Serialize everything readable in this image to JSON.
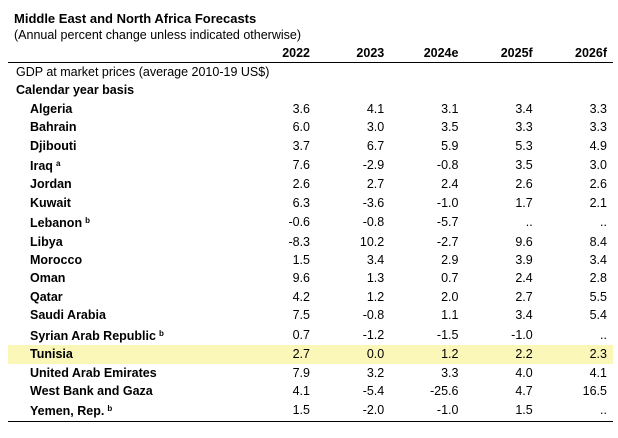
{
  "title": "Middle East and North Africa Forecasts",
  "subtitle": "(Annual percent change unless indicated otherwise)",
  "columns": [
    "2022",
    "2023",
    "2024e",
    "2025f",
    "2026f"
  ],
  "section_label": "GDP at market prices (average 2010-19 US$)",
  "subsection_label": "Calendar year basis",
  "rows": [
    {
      "name": "Algeria",
      "note": "",
      "values": [
        "3.6",
        "4.1",
        "3.1",
        "3.4",
        "3.3"
      ]
    },
    {
      "name": "Bahrain",
      "note": "",
      "values": [
        "6.0",
        "3.0",
        "3.5",
        "3.3",
        "3.3"
      ]
    },
    {
      "name": "Djibouti",
      "note": "",
      "values": [
        "3.7",
        "6.7",
        "5.9",
        "5.3",
        "4.9"
      ]
    },
    {
      "name": "Iraq",
      "note": "a",
      "values": [
        "7.6",
        "-2.9",
        "-0.8",
        "3.5",
        "3.0"
      ]
    },
    {
      "name": "Jordan",
      "note": "",
      "values": [
        "2.6",
        "2.7",
        "2.4",
        "2.6",
        "2.6"
      ]
    },
    {
      "name": "Kuwait",
      "note": "",
      "values": [
        "6.3",
        "-3.6",
        "-1.0",
        "1.7",
        "2.1"
      ]
    },
    {
      "name": "Lebanon",
      "note": "b",
      "values": [
        "-0.6",
        "-0.8",
        "-5.7",
        "..",
        ".."
      ]
    },
    {
      "name": "Libya",
      "note": "",
      "values": [
        "-8.3",
        "10.2",
        "-2.7",
        "9.6",
        "8.4"
      ]
    },
    {
      "name": "Morocco",
      "note": "",
      "values": [
        "1.5",
        "3.4",
        "2.9",
        "3.9",
        "3.4"
      ]
    },
    {
      "name": "Oman",
      "note": "",
      "values": [
        "9.6",
        "1.3",
        "0.7",
        "2.4",
        "2.8"
      ]
    },
    {
      "name": "Qatar",
      "note": "",
      "values": [
        "4.2",
        "1.2",
        "2.0",
        "2.7",
        "5.5"
      ]
    },
    {
      "name": "Saudi Arabia",
      "note": "",
      "values": [
        "7.5",
        "-0.8",
        "1.1",
        "3.4",
        "5.4"
      ]
    },
    {
      "name": "Syrian Arab Republic",
      "note": "b",
      "values": [
        "0.7",
        "-1.2",
        "-1.5",
        "-1.0",
        ".."
      ]
    },
    {
      "name": "Tunisia",
      "note": "",
      "values": [
        "2.7",
        "0.0",
        "1.2",
        "2.2",
        "2.3"
      ],
      "highlighted": true
    },
    {
      "name": "United Arab Emirates",
      "note": "",
      "values": [
        "7.9",
        "3.2",
        "3.3",
        "4.0",
        "4.1"
      ]
    },
    {
      "name": "West Bank and Gaza",
      "note": "",
      "values": [
        "4.1",
        "-5.4",
        "-25.6",
        "4.7",
        "16.5"
      ]
    },
    {
      "name": "Yemen, Rep.",
      "note": "b",
      "values": [
        "1.5",
        "-2.0",
        "-1.0",
        "1.5",
        ".."
      ]
    }
  ],
  "colors": {
    "highlight": "#fbf7b8"
  }
}
